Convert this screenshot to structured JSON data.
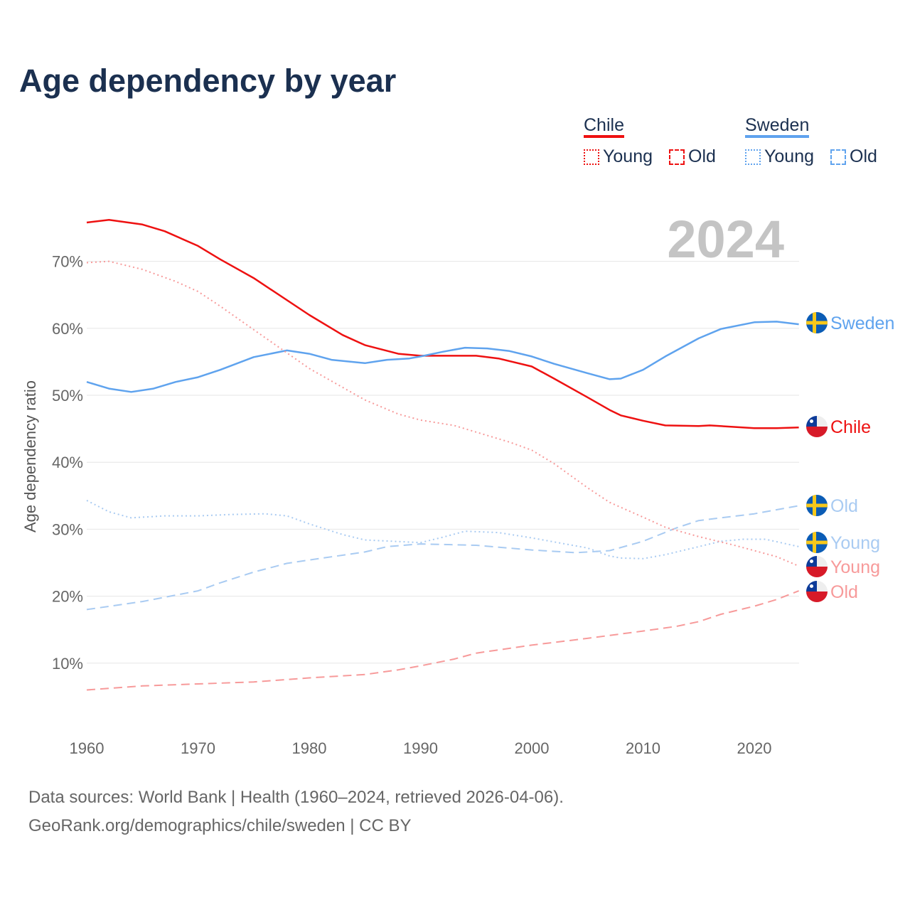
{
  "chart_data": {
    "type": "line",
    "title": "Age dependency by year",
    "ylabel": "Age dependency ratio",
    "xlabel": "",
    "xlim": [
      1960,
      2024
    ],
    "ylim": [
      0,
      80
    ],
    "x_ticks": [
      "1960",
      "1970",
      "1980",
      "1990",
      "2000",
      "2010",
      "2020"
    ],
    "y_ticks": [
      "10%",
      "20%",
      "30%",
      "40%",
      "50%",
      "60%",
      "70%"
    ],
    "year_label": "2024",
    "grid": true,
    "legend": {
      "groups": [
        {
          "name": "Chile",
          "items": [
            "Young",
            "Old"
          ]
        },
        {
          "name": "Sweden",
          "items": [
            "Young",
            "Old"
          ]
        }
      ],
      "placement": "top-right"
    },
    "series": [
      {
        "name": "Chile",
        "end_label": "Chile",
        "country": "Chile",
        "color": "#ee1111",
        "style": "solid",
        "points": [
          [
            1960,
            75.8
          ],
          [
            1962,
            76.2
          ],
          [
            1965,
            75.5
          ],
          [
            1967,
            74.5
          ],
          [
            1970,
            72.3
          ],
          [
            1972,
            70.3
          ],
          [
            1975,
            67.5
          ],
          [
            1980,
            62
          ],
          [
            1983,
            59
          ],
          [
            1985,
            57.5
          ],
          [
            1988,
            56.2
          ],
          [
            1990,
            55.9
          ],
          [
            1995,
            55.9
          ],
          [
            1997,
            55.5
          ],
          [
            2000,
            54.3
          ],
          [
            2002,
            52.5
          ],
          [
            2005,
            49.7
          ],
          [
            2007,
            47.8
          ],
          [
            2008,
            47
          ],
          [
            2010,
            46.2
          ],
          [
            2012,
            45.5
          ],
          [
            2015,
            45.4
          ],
          [
            2016,
            45.5
          ],
          [
            2020,
            45.1
          ],
          [
            2022,
            45.1
          ],
          [
            2024,
            45.2
          ]
        ]
      },
      {
        "name": "Sweden",
        "end_label": "Sweden",
        "country": "Sweden",
        "color": "#5fa3ee",
        "style": "solid",
        "points": [
          [
            1960,
            52
          ],
          [
            1962,
            51
          ],
          [
            1964,
            50.5
          ],
          [
            1966,
            51
          ],
          [
            1968,
            52
          ],
          [
            1970,
            52.7
          ],
          [
            1972,
            53.8
          ],
          [
            1975,
            55.7
          ],
          [
            1978,
            56.7
          ],
          [
            1980,
            56.2
          ],
          [
            1982,
            55.3
          ],
          [
            1985,
            54.8
          ],
          [
            1987,
            55.3
          ],
          [
            1989,
            55.5
          ],
          [
            1990,
            55.8
          ],
          [
            1992,
            56.5
          ],
          [
            1994,
            57.1
          ],
          [
            1996,
            57
          ],
          [
            1998,
            56.6
          ],
          [
            2000,
            55.8
          ],
          [
            2002,
            54.7
          ],
          [
            2005,
            53.3
          ],
          [
            2007,
            52.4
          ],
          [
            2008,
            52.5
          ],
          [
            2010,
            53.8
          ],
          [
            2012,
            55.8
          ],
          [
            2015,
            58.5
          ],
          [
            2017,
            59.9
          ],
          [
            2020,
            60.9
          ],
          [
            2022,
            61
          ],
          [
            2024,
            60.6
          ]
        ]
      },
      {
        "name": "Sweden Old",
        "end_label": "Old",
        "country": "Sweden",
        "color": "#a9cbf2",
        "style": "dashed",
        "points": [
          [
            1960,
            18
          ],
          [
            1965,
            19.2
          ],
          [
            1970,
            20.8
          ],
          [
            1972,
            22
          ],
          [
            1975,
            23.6
          ],
          [
            1978,
            24.9
          ],
          [
            1980,
            25.4
          ],
          [
            1985,
            26.6
          ],
          [
            1987,
            27.4
          ],
          [
            1990,
            27.8
          ],
          [
            1995,
            27.6
          ],
          [
            2000,
            26.9
          ],
          [
            2004,
            26.5
          ],
          [
            2007,
            26.8
          ],
          [
            2010,
            28.2
          ],
          [
            2013,
            30.2
          ],
          [
            2015,
            31.3
          ],
          [
            2020,
            32.3
          ],
          [
            2024,
            33.5
          ]
        ]
      },
      {
        "name": "Sweden Young",
        "end_label": "Young",
        "country": "Sweden",
        "color": "#a9cbf2",
        "style": "dotted",
        "points": [
          [
            1960,
            34.3
          ],
          [
            1962,
            32.6
          ],
          [
            1964,
            31.7
          ],
          [
            1967,
            32
          ],
          [
            1970,
            32
          ],
          [
            1973,
            32.2
          ],
          [
            1976,
            32.3
          ],
          [
            1978,
            32
          ],
          [
            1980,
            30.8
          ],
          [
            1983,
            29.2
          ],
          [
            1985,
            28.4
          ],
          [
            1990,
            28
          ],
          [
            1992,
            28.8
          ],
          [
            1994,
            29.7
          ],
          [
            1997,
            29.5
          ],
          [
            2000,
            28.7
          ],
          [
            2005,
            27.2
          ],
          [
            2007,
            26
          ],
          [
            2008,
            25.7
          ],
          [
            2010,
            25.6
          ],
          [
            2012,
            26.2
          ],
          [
            2015,
            27.4
          ],
          [
            2017,
            28.2
          ],
          [
            2019,
            28.5
          ],
          [
            2021,
            28.5
          ],
          [
            2024,
            27.4
          ]
        ]
      },
      {
        "name": "Chile Young",
        "end_label": "Young",
        "country": "Chile",
        "color": "#f79a9a",
        "style": "dotted",
        "points": [
          [
            1960,
            69.8
          ],
          [
            1962,
            70
          ],
          [
            1965,
            68.8
          ],
          [
            1968,
            67
          ],
          [
            1970,
            65.5
          ],
          [
            1972,
            63.3
          ],
          [
            1975,
            59.8
          ],
          [
            1980,
            54
          ],
          [
            1985,
            49.3
          ],
          [
            1988,
            47.2
          ],
          [
            1990,
            46.3
          ],
          [
            1993,
            45.5
          ],
          [
            1995,
            44.5
          ],
          [
            1998,
            43
          ],
          [
            2000,
            41.8
          ],
          [
            2002,
            39.8
          ],
          [
            2005,
            36.2
          ],
          [
            2007,
            34
          ],
          [
            2010,
            31.8
          ],
          [
            2012,
            30.3
          ],
          [
            2015,
            28.9
          ],
          [
            2018,
            27.7
          ],
          [
            2020,
            26.8
          ],
          [
            2022,
            25.9
          ],
          [
            2024,
            24.5
          ]
        ]
      },
      {
        "name": "Chile Old",
        "end_label": "Old",
        "country": "Chile",
        "color": "#f79a9a",
        "style": "dashed",
        "points": [
          [
            1960,
            6
          ],
          [
            1965,
            6.6
          ],
          [
            1970,
            6.9
          ],
          [
            1975,
            7.2
          ],
          [
            1980,
            7.8
          ],
          [
            1985,
            8.3
          ],
          [
            1988,
            9
          ],
          [
            1990,
            9.6
          ],
          [
            1993,
            10.6
          ],
          [
            1995,
            11.5
          ],
          [
            2000,
            12.7
          ],
          [
            2005,
            13.7
          ],
          [
            2010,
            14.8
          ],
          [
            2013,
            15.5
          ],
          [
            2015,
            16.2
          ],
          [
            2017,
            17.3
          ],
          [
            2020,
            18.5
          ],
          [
            2022,
            19.5
          ],
          [
            2024,
            20.8
          ]
        ]
      }
    ]
  },
  "footer": {
    "line1": "Data sources: World Bank | Health (1960–2024, retrieved 2026-04-06).",
    "line2": "GeoRank.org/demographics/chile/sweden | CC BY"
  }
}
